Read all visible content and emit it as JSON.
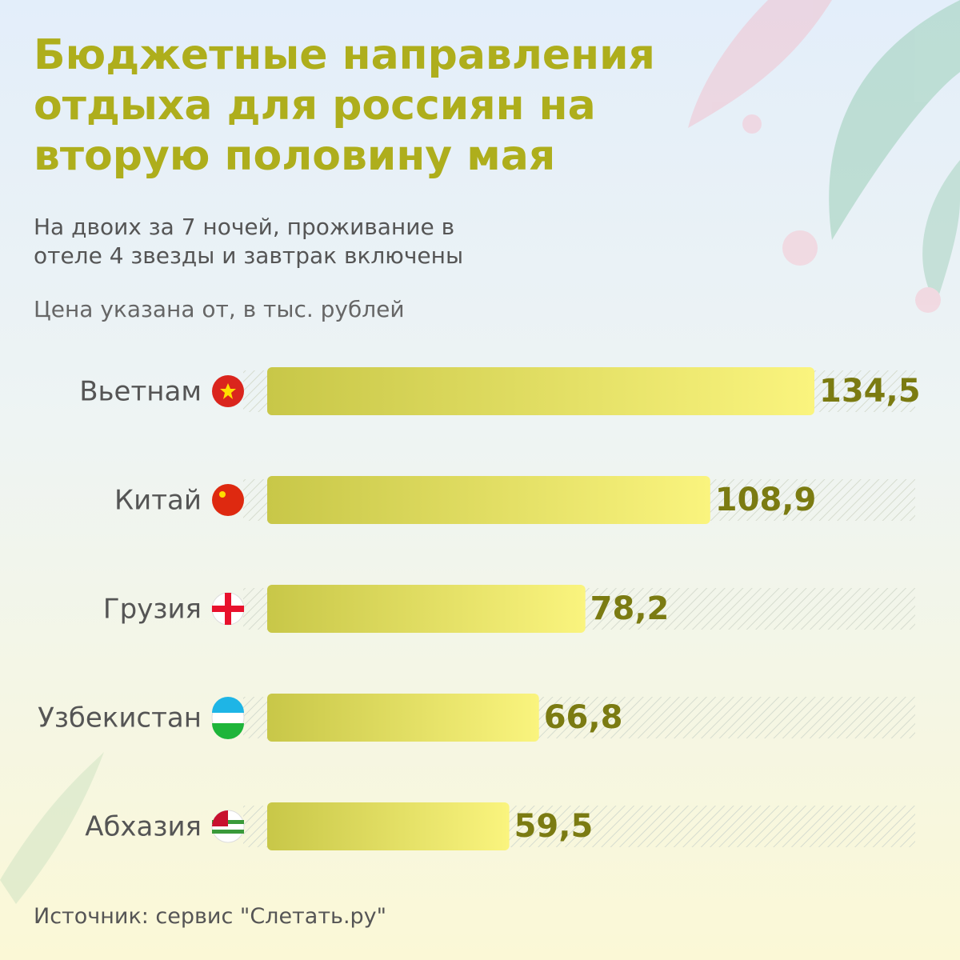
{
  "chart_data": {
    "type": "bar",
    "orientation": "horizontal",
    "title": "Бюджетные направления отдыха для россиян на вторую половину мая",
    "subtitle": "На двоих за 7 ночей, проживание в отеле 4 звезды и завтрак включены",
    "note": "Цена указана от, в тыс. рублей",
    "source": "Источник: сервис \"Слетать.ру\"",
    "categories": [
      "Вьетнам",
      "Китай",
      "Грузия",
      "Узбекистан",
      "Абхазия"
    ],
    "values": [
      134.5,
      108.9,
      78.2,
      66.8,
      59.5
    ],
    "value_labels": [
      "134,5",
      "108,9",
      "78,2",
      "66,8",
      "59,5"
    ],
    "color": "#d8d455"
  }
}
